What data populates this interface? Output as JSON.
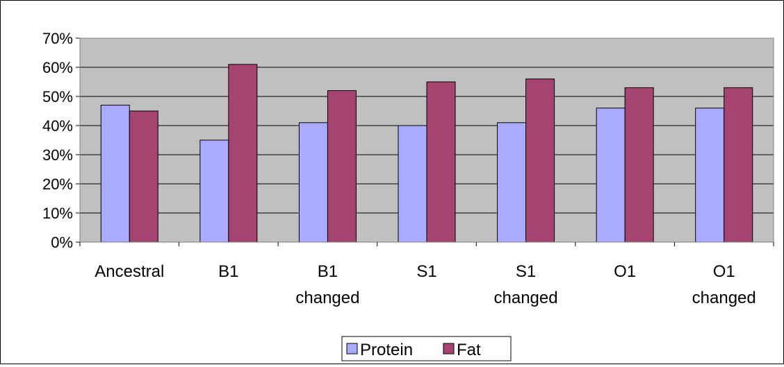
{
  "chart_data": {
    "type": "bar",
    "title": "",
    "xlabel": "",
    "ylabel": "",
    "categories": [
      [
        "Ancestral"
      ],
      [
        "B1"
      ],
      [
        "B1",
        "changed"
      ],
      [
        "S1"
      ],
      [
        "S1",
        "changed"
      ],
      [
        "O1"
      ],
      [
        "O1",
        "changed"
      ]
    ],
    "series": [
      {
        "name": "Protein",
        "color": "#aaaaff",
        "values": [
          47,
          35,
          41,
          40,
          41,
          46,
          46
        ]
      },
      {
        "name": "Fat",
        "color": "#a64471",
        "values": [
          45,
          61,
          52,
          55,
          56,
          53,
          53
        ]
      }
    ],
    "ylim": [
      0,
      70
    ],
    "yticks": [
      0,
      10,
      20,
      30,
      40,
      50,
      60,
      70
    ],
    "ytick_format": "percent",
    "grid": true,
    "plot_background": "#c0c0c0",
    "legend_position": "bottom-center"
  }
}
